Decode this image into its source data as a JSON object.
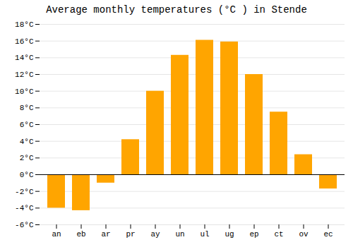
{
  "chart_data": {
    "type": "bar",
    "title": "Average monthly temperatures (°C ) in Stende",
    "categories": [
      "an",
      "eb",
      "ar",
      "pr",
      "ay",
      "un",
      "ul",
      "ug",
      "ep",
      "ct",
      "ov",
      "ec"
    ],
    "values": [
      -4.0,
      -4.3,
      -1.0,
      4.2,
      10.0,
      14.3,
      16.1,
      15.9,
      12.0,
      7.5,
      2.4,
      -1.7
    ],
    "color": "#FFA500",
    "ylim": [
      -6,
      18
    ],
    "yticks": [
      {
        "value": -6,
        "label": "-6°C"
      },
      {
        "value": -4,
        "label": "-4°C"
      },
      {
        "value": -2,
        "label": "-2°C"
      },
      {
        "value": 0,
        "label": "0°C"
      },
      {
        "value": 2,
        "label": "2°C"
      },
      {
        "value": 4,
        "label": "4°C"
      },
      {
        "value": 6,
        "label": "6°C"
      },
      {
        "value": 8,
        "label": "8°C"
      },
      {
        "value": 10,
        "label": "10°C"
      },
      {
        "value": 12,
        "label": "12°C"
      },
      {
        "value": 14,
        "label": "14°C"
      },
      {
        "value": 16,
        "label": "16°C"
      },
      {
        "value": 18,
        "label": "18°C"
      }
    ],
    "grid": true
  }
}
